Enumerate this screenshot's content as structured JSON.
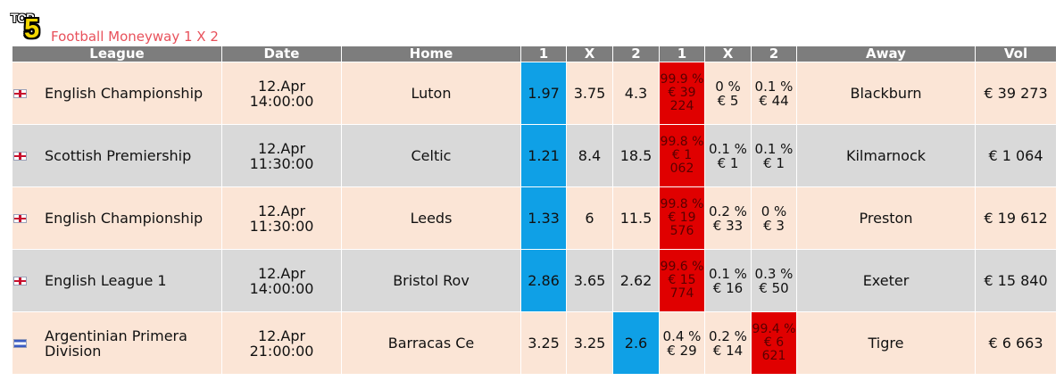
{
  "logo": {
    "top": "TOP",
    "number": "5"
  },
  "title": "Football Moneyway 1 X 2",
  "headers": {
    "league": "League",
    "date": "Date",
    "home": "Home",
    "odds_1": "1",
    "odds_x": "X",
    "odds_2": "2",
    "share_1": "1",
    "share_x": "X",
    "share_2": "2",
    "away": "Away",
    "vol": "Vol"
  },
  "rows": [
    {
      "flag": "england-flag-icon",
      "league": "English Championship",
      "date_day": "12.Apr",
      "date_time": "14:00:00",
      "home": "Luton",
      "odds_1": "1.97",
      "odds_x": "3.75",
      "odds_2": "4.3",
      "share_1": {
        "pct": "99.9 %",
        "amt": "€ 39 224"
      },
      "share_x": {
        "pct": "0 %",
        "amt": "€ 5"
      },
      "share_2": {
        "pct": "0.1 %",
        "amt": "€ 44"
      },
      "away": "Blackburn",
      "vol": "€ 39 273",
      "best_odds": "1",
      "top_share": "1"
    },
    {
      "flag": "scotland-flag-icon",
      "league": "Scottish Premiership",
      "date_day": "12.Apr",
      "date_time": "11:30:00",
      "home": "Celtic",
      "odds_1": "1.21",
      "odds_x": "8.4",
      "odds_2": "18.5",
      "share_1": {
        "pct": "99.8 %",
        "amt": "€ 1 062"
      },
      "share_x": {
        "pct": "0.1 %",
        "amt": "€ 1"
      },
      "share_2": {
        "pct": "0.1 %",
        "amt": "€ 1"
      },
      "away": "Kilmarnock",
      "vol": "€ 1 064",
      "best_odds": "1",
      "top_share": "1"
    },
    {
      "flag": "england-flag-icon",
      "league": "English Championship",
      "date_day": "12.Apr",
      "date_time": "11:30:00",
      "home": "Leeds",
      "odds_1": "1.33",
      "odds_x": "6",
      "odds_2": "11.5",
      "share_1": {
        "pct": "99.8 %",
        "amt": "€ 19 576"
      },
      "share_x": {
        "pct": "0.2 %",
        "amt": "€ 33"
      },
      "share_2": {
        "pct": "0 %",
        "amt": "€ 3"
      },
      "away": "Preston",
      "vol": "€ 19 612",
      "best_odds": "1",
      "top_share": "1"
    },
    {
      "flag": "england-flag-icon",
      "league": "English League 1",
      "date_day": "12.Apr",
      "date_time": "14:00:00",
      "home": "Bristol Rov",
      "odds_1": "2.86",
      "odds_x": "3.65",
      "odds_2": "2.62",
      "share_1": {
        "pct": "99.6 %",
        "amt": "€ 15 774"
      },
      "share_x": {
        "pct": "0.1 %",
        "amt": "€ 16"
      },
      "share_2": {
        "pct": "0.3 %",
        "amt": "€ 50"
      },
      "away": "Exeter",
      "vol": "€ 15 840",
      "best_odds": "1",
      "top_share": "1"
    },
    {
      "flag": "argentina-flag-icon",
      "league": "Argentinian Primera Division",
      "date_day": "12.Apr",
      "date_time": "21:00:00",
      "home": "Barracas Ce",
      "odds_1": "3.25",
      "odds_x": "3.25",
      "odds_2": "2.6",
      "share_1": {
        "pct": "0.4 %",
        "amt": "€ 29"
      },
      "share_x": {
        "pct": "0.2 %",
        "amt": "€ 14"
      },
      "share_2": {
        "pct": "99.4 %",
        "amt": "€ 6 621"
      },
      "away": "Tigre",
      "vol": "€ 6 663",
      "best_odds": "2",
      "top_share": "2"
    }
  ],
  "colors": {
    "header_bg": "#7d7d7d",
    "row_odd": "#fbe5d6",
    "row_even": "#d9d9d9",
    "best_odds": "#0fa0e6",
    "top_share": "#e00000",
    "title": "#e8515b"
  }
}
